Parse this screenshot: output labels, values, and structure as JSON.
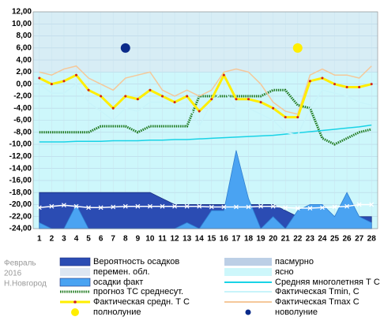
{
  "chart_data": {
    "type": "line",
    "caption": [
      "Февраль",
      "2016",
      "Н.Новгород"
    ],
    "categories": [
      1,
      2,
      3,
      4,
      5,
      6,
      7,
      8,
      9,
      10,
      11,
      12,
      13,
      14,
      15,
      16,
      17,
      18,
      19,
      20,
      21,
      22,
      23,
      24,
      25,
      26,
      27,
      28
    ],
    "ylim": [
      -24,
      12
    ],
    "yticks": [
      {
        "value": 12,
        "label": "12,00"
      },
      {
        "value": 10,
        "label": "10,00"
      },
      {
        "value": 8,
        "label": "8,00"
      },
      {
        "value": 6,
        "label": "6,00"
      },
      {
        "value": 4,
        "label": "4,00"
      },
      {
        "value": 2,
        "label": "2,00"
      },
      {
        "value": 0,
        "label": "0,00"
      },
      {
        "value": -2,
        "label": "-2,00"
      },
      {
        "value": -4,
        "label": "-4,00"
      },
      {
        "value": -6,
        "label": "-6,00"
      },
      {
        "value": -8,
        "label": "-8,00"
      },
      {
        "value": -10,
        "label": "-10,00"
      },
      {
        "value": -12,
        "label": "-12,00"
      },
      {
        "value": -14,
        "label": "-14,00"
      },
      {
        "value": -16,
        "label": "-16,00"
      },
      {
        "value": -18,
        "label": "-18,00"
      },
      {
        "value": -20,
        "label": "-20,00"
      },
      {
        "value": -22,
        "label": "-22,00"
      },
      {
        "value": -24,
        "label": "-24,00"
      }
    ],
    "grid": true,
    "areas": [
      {
        "name": "Вероятность осадков",
        "color": "#2b4cb3",
        "values": [
          -18,
          -18,
          -18,
          -18,
          -18,
          -18,
          -18,
          -18,
          -18,
          -18,
          -19,
          -20,
          -20,
          -20,
          -20,
          -20,
          -20,
          -20,
          -20,
          -20,
          -21,
          -22,
          -22,
          -22,
          -22,
          -22,
          -22,
          -22
        ]
      },
      {
        "name": "осадки факт",
        "color": "#4aa3f2",
        "values": [
          -23,
          -24,
          -24,
          -20,
          -24,
          -24,
          -24,
          -24,
          -24,
          -24,
          -24,
          -24,
          -23,
          -24,
          -21,
          -21,
          -11,
          -19,
          -24,
          -22,
          -24,
          -21,
          -20,
          -20,
          -22,
          -18,
          -22,
          -23
        ]
      }
    ],
    "sky": [
      {
        "name": "перемен. обл.",
        "color": "#dde6f2"
      },
      {
        "name": "пасмурно",
        "color": "#bccfe6"
      },
      {
        "name": "ясно",
        "color": "#cdf7fb"
      }
    ],
    "series": [
      {
        "name": "прогноз ТС среднесут.",
        "color": "#1f7a1f",
        "values": [
          -8,
          -8,
          -8,
          -8,
          -8,
          -7,
          -7,
          -7,
          -8,
          -7,
          -7,
          -7,
          -7,
          -2,
          -2,
          -2,
          -2,
          -2,
          -2,
          -1,
          -1,
          -3.5,
          -4,
          -9,
          -10,
          -9,
          -8,
          -7.5
        ]
      },
      {
        "name": "Средняя многолетняя Т С",
        "color": "#19d3e6",
        "values": [
          -9.6,
          -9.6,
          -9.6,
          -9.5,
          -9.5,
          -9.5,
          -9.4,
          -9.4,
          -9.4,
          -9.3,
          -9.3,
          -9.2,
          -9.2,
          -9.1,
          -9,
          -8.9,
          -8.8,
          -8.7,
          -8.6,
          -8.5,
          -8.3,
          -8.1,
          -7.9,
          -7.7,
          -7.5,
          -7.3,
          -7.1,
          -6.8
        ]
      },
      {
        "name": "Фактическая Tmin, С",
        "color": "#c8f4fa",
        "values": [
          0,
          -1.5,
          -1.5,
          0,
          -3,
          -4.5,
          -6,
          -4,
          -4.5,
          -3,
          -3,
          -3.5,
          -3,
          -7,
          -3,
          -1,
          -4,
          -4,
          -5,
          -6,
          -8,
          -8.5,
          -4,
          -1,
          -1.5,
          -2,
          -3,
          -3.5
        ]
      },
      {
        "name": "Фактическая Tmax С",
        "color": "#f5c89a",
        "values": [
          2,
          1.5,
          2.5,
          3,
          1,
          0,
          -1,
          1,
          1.5,
          2,
          -1,
          -2,
          -1,
          -2,
          -1,
          2,
          2.5,
          2,
          0,
          -3,
          -4.5,
          -5,
          1.5,
          2.5,
          1.5,
          1.5,
          1,
          3
        ]
      },
      {
        "name": "Фактическая средн. Т С",
        "color": "#ffee00",
        "values": [
          1,
          0,
          0.5,
          1.5,
          -1,
          -2,
          -4,
          -2,
          -2.5,
          -1,
          -2,
          -3,
          -2,
          -4.5,
          -2.5,
          1.5,
          -2.5,
          -2.5,
          -3,
          -4,
          -5.5,
          -5.5,
          0.5,
          1,
          0,
          -0.5,
          -0.5,
          0
        ]
      },
      {
        "color": "#ffffff",
        "values": [
          -20.5,
          -20.3,
          -20.1,
          -20.3,
          -20.5,
          -20.5,
          -20.4,
          -20.3,
          -20.3,
          -20.3,
          -20.3,
          -20.3,
          -20.3,
          -20.3,
          -20.4,
          -20.4,
          -20.4,
          -20.4,
          -20.3,
          -20.3,
          -20.5,
          -20.6,
          -20.6,
          -20.5,
          -20.4,
          -20.3,
          -20,
          -20
        ]
      }
    ],
    "moons": [
      {
        "name": "полнолуние",
        "color": "#ffee00",
        "x": 22,
        "y": 6
      },
      {
        "name": "новолуние",
        "color": "#0a2a8a",
        "x": 8,
        "y": 6
      }
    ]
  }
}
